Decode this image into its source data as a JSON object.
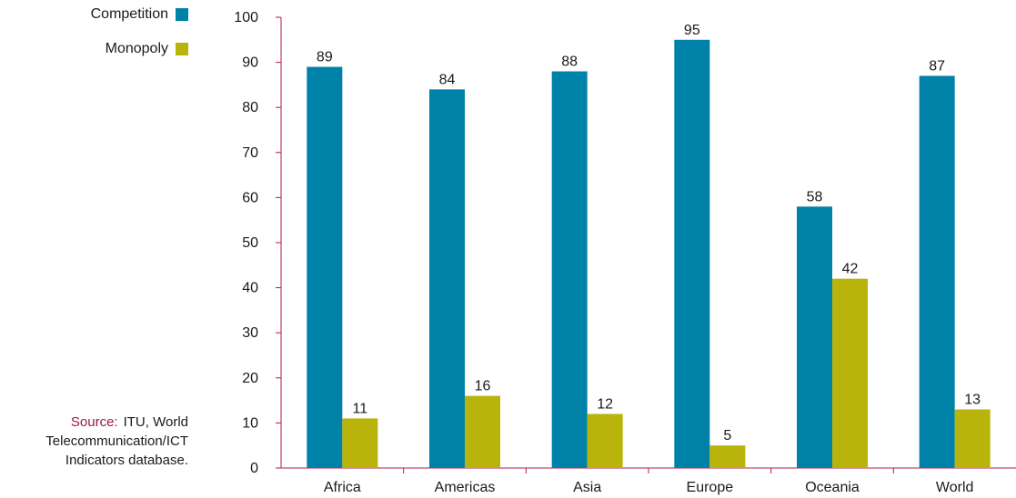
{
  "legend": {
    "competition_label": "Competition",
    "monopoly_label": "Monopoly"
  },
  "source": {
    "label": "Source:",
    "line1": "ITU, World",
    "line2": "Telecommunication/ICT",
    "line3": "Indicators database."
  },
  "colors": {
    "competition": "#0082a8",
    "monopoly": "#b8b40c",
    "source_label": "#a01840",
    "axis": "#b01c48"
  },
  "chart_data": {
    "type": "bar",
    "categories": [
      "Africa",
      "Americas",
      "Asia",
      "Europe",
      "Oceania",
      "World"
    ],
    "series": [
      {
        "name": "Competition",
        "values": [
          89,
          84,
          88,
          95,
          58,
          87
        ]
      },
      {
        "name": "Monopoly",
        "values": [
          11,
          16,
          12,
          5,
          42,
          13
        ]
      }
    ],
    "ylim": [
      0,
      100
    ],
    "yticks": [
      0,
      10,
      20,
      30,
      40,
      50,
      60,
      70,
      80,
      90,
      100
    ],
    "title": "",
    "xlabel": "",
    "ylabel": "",
    "grid": false,
    "legend_position": "top-left"
  }
}
